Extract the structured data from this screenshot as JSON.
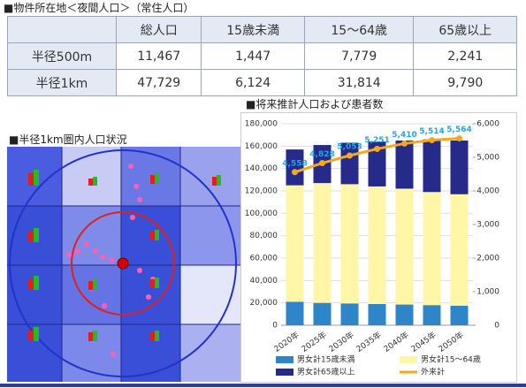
{
  "header": {
    "title": "■物件所在地＜夜間人口＞（常住人口）"
  },
  "table": {
    "header": [
      "総人口",
      "15歳未満",
      "15～64歳",
      "65歳以上"
    ],
    "rows": [
      [
        "半径500m",
        "11,467",
        "1,447",
        "7,779",
        "2,241"
      ],
      [
        "半径1km",
        "47,729",
        "6,124",
        "31,814",
        "9,790"
      ]
    ]
  },
  "map": {
    "title": "■半径1km圏内人口状況"
  },
  "chart_data": {
    "type": "stacked-bar-line",
    "title": "■将来推計人口および患者数",
    "categories": [
      "2020年",
      "2025年",
      "2030年",
      "2035年",
      "2040年",
      "2045年",
      "2050年"
    ],
    "series": [
      {
        "name": "男女計15歳未満",
        "color": "#2e86c8",
        "values": [
          21000,
          20000,
          19500,
          19000,
          18500,
          18000,
          17500
        ]
      },
      {
        "name": "男女計15～64歳",
        "color": "#fff6a8",
        "values": [
          104000,
          107000,
          106500,
          105000,
          103500,
          101000,
          99500
        ]
      },
      {
        "name": "男女計65歳以上",
        "color": "#262a8a",
        "values": [
          32000,
          34000,
          37000,
          40000,
          43000,
          47000,
          48000
        ]
      },
      {
        "name": "外来計",
        "color": "#f4a81d",
        "axis": "y2",
        "values": [
          4558,
          4828,
          5053,
          5251,
          5410,
          5514,
          5564
        ],
        "value_labels": [
          "4,558",
          "4,828",
          "5,053",
          "5,251",
          "5,410",
          "5,514",
          "5,564"
        ]
      }
    ],
    "ylim": [
      0,
      180000
    ],
    "yticks": [
      0,
      {
        "value": 20000,
        "label": "20,000"
      },
      {
        "value": 40000,
        "label": "40,000"
      },
      {
        "value": 60000,
        "label": "60,000"
      },
      {
        "value": 80000,
        "label": "80,000"
      },
      {
        "value": 100000,
        "label": "100,000"
      },
      {
        "value": 120000,
        "label": "120,000"
      },
      {
        "value": 140000,
        "label": "140,000"
      },
      {
        "value": 160000,
        "label": "160,000"
      },
      {
        "value": 180000,
        "label": "180,000"
      }
    ],
    "y2lim": [
      0,
      6000
    ],
    "y2ticks": [
      0,
      {
        "value": 1000,
        "label": "1,000"
      },
      {
        "value": 2000,
        "label": "2,000"
      },
      {
        "value": 3000,
        "label": "3,000"
      },
      {
        "value": 4000,
        "label": "4,000"
      },
      {
        "value": 5000,
        "label": "5,000"
      },
      {
        "value": 6000,
        "label": "6,000"
      }
    ],
    "grid": true
  }
}
